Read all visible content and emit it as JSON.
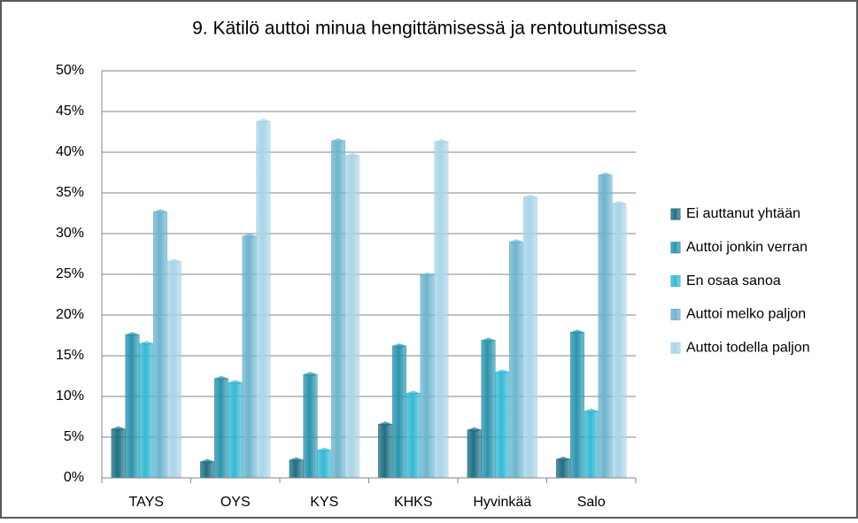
{
  "chart_data": {
    "type": "bar",
    "title": "9. Kätilö auttoi minua hengittämisessä ja rentoutumisessa",
    "categories": [
      "TAYS",
      "OYS",
      "KYS",
      "KHKS",
      "Hyvinkää",
      "Salo"
    ],
    "series": [
      {
        "name": "Ei auttanut yhtään",
        "color": "#1f6f84",
        "values": [
          6.0,
          2.0,
          2.2,
          6.6,
          5.9,
          2.3
        ]
      },
      {
        "name": "Auttoi jonkin verran",
        "color": "#2a94ad",
        "values": [
          17.6,
          12.2,
          12.7,
          16.2,
          16.9,
          17.9
        ]
      },
      {
        "name": "En osaa sanoa",
        "color": "#35b9d3",
        "values": [
          16.5,
          11.7,
          3.4,
          10.4,
          13.0,
          8.2
        ]
      },
      {
        "name": "Auttoi melko paljon",
        "color": "#6db4cf",
        "values": [
          32.7,
          29.7,
          41.4,
          24.9,
          29.0,
          37.2
        ]
      },
      {
        "name": "Auttoi todella paljon",
        "color": "#a9d4e7",
        "values": [
          26.6,
          43.8,
          39.6,
          41.3,
          34.5,
          33.7
        ]
      }
    ],
    "ylim": [
      0,
      50
    ],
    "yticks": [
      {
        "value": 0,
        "label": "0%"
      },
      {
        "value": 5,
        "label": "5%"
      },
      {
        "value": 10,
        "label": "10%"
      },
      {
        "value": 15,
        "label": "15%"
      },
      {
        "value": 20,
        "label": "20%"
      },
      {
        "value": 25,
        "label": "25%"
      },
      {
        "value": 30,
        "label": "30%"
      },
      {
        "value": 35,
        "label": "35%"
      },
      {
        "value": 40,
        "label": "40%"
      },
      {
        "value": 45,
        "label": "45%"
      },
      {
        "value": 50,
        "label": "50%"
      }
    ],
    "grid": true,
    "legend": "right"
  }
}
